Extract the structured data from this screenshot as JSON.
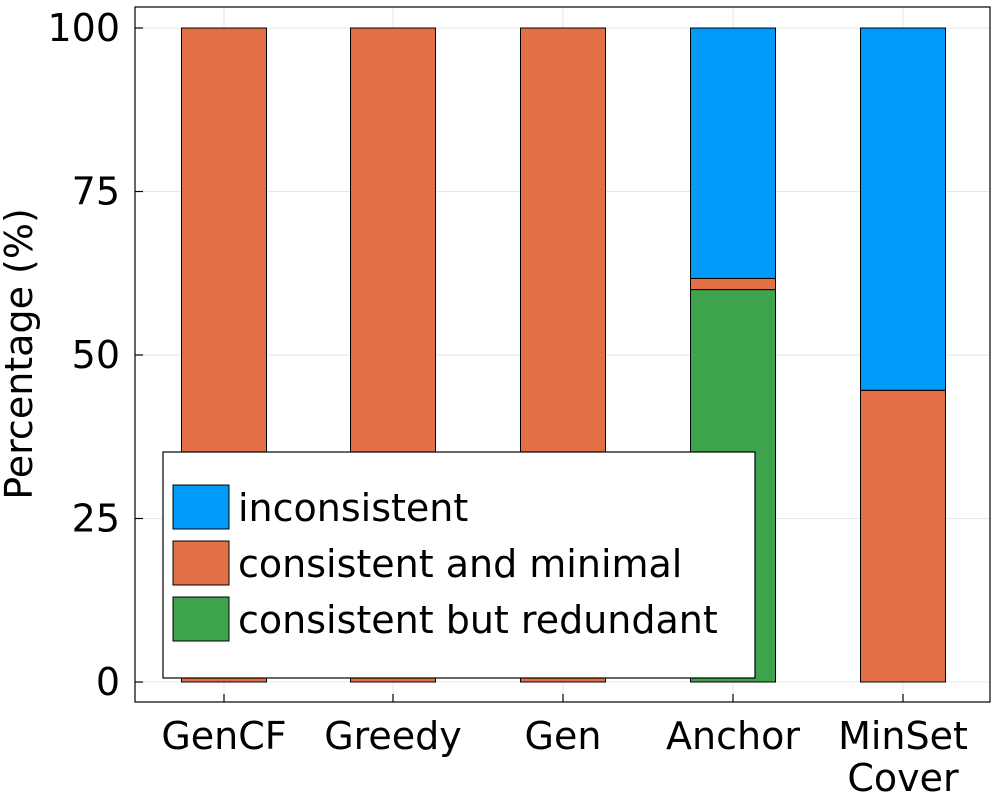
{
  "chart_data": {
    "type": "bar",
    "stacked": true,
    "title": "",
    "xlabel": "",
    "ylabel": "Percentage (%)",
    "ylim": [
      0,
      100
    ],
    "yticks": [
      0,
      25,
      50,
      75,
      100
    ],
    "grid": true,
    "legend_position": "bottom-left",
    "categories": [
      {
        "lines": [
          "GenCF"
        ]
      },
      {
        "lines": [
          "Greedy"
        ]
      },
      {
        "lines": [
          "Gen"
        ]
      },
      {
        "lines": [
          "Anchor"
        ]
      },
      {
        "lines": [
          "MinSet",
          "Cover"
        ]
      }
    ],
    "series": [
      {
        "name": "consistent but redundant",
        "color": "#3da44d",
        "values": [
          0,
          0,
          0,
          60,
          0
        ]
      },
      {
        "name": "consistent and minimal",
        "color": "#e26f46",
        "values": [
          100,
          100,
          100,
          1.7,
          44.6
        ]
      },
      {
        "name": "inconsistent",
        "color": "#009af9",
        "values": [
          0,
          0,
          0,
          38.3,
          55.4
        ]
      }
    ],
    "legend_order": [
      "inconsistent",
      "consistent and minimal",
      "consistent but redundant"
    ]
  }
}
